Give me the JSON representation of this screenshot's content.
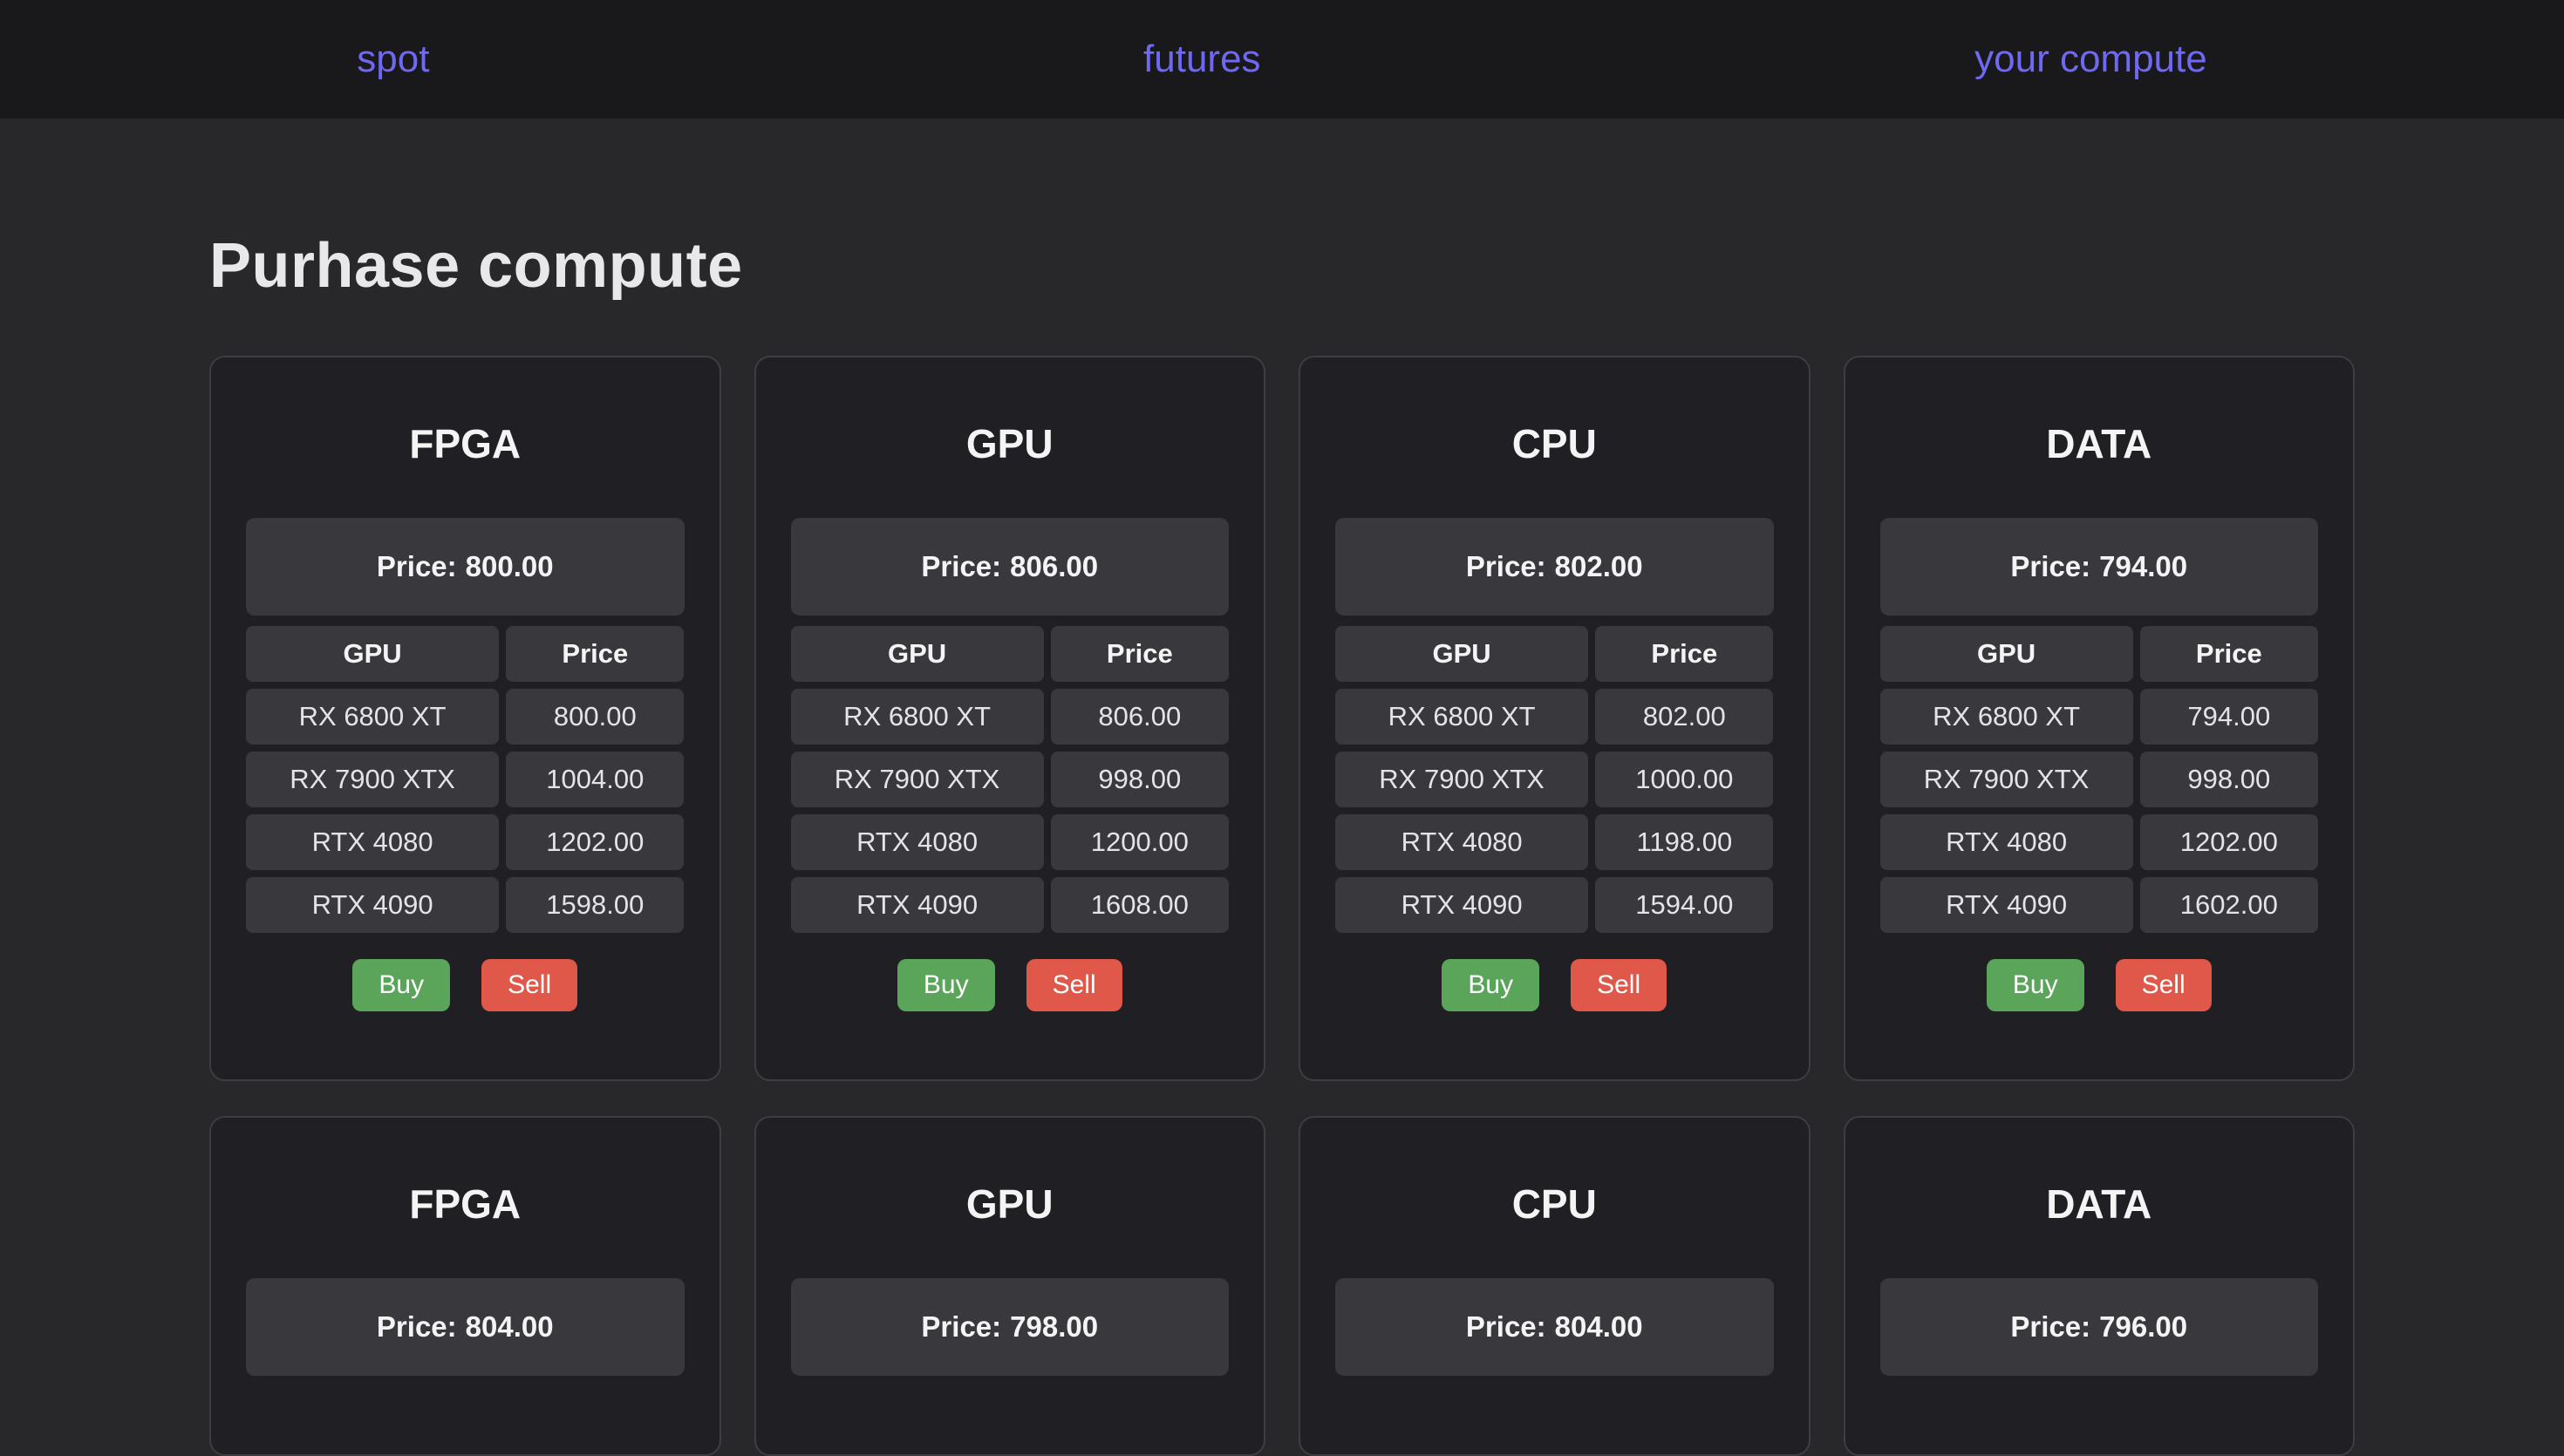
{
  "nav": {
    "items": [
      {
        "label": "spot"
      },
      {
        "label": "futures"
      },
      {
        "label": "your compute"
      }
    ]
  },
  "page": {
    "title": "Purhase compute"
  },
  "strings": {
    "price_prefix": "Price:",
    "buy": "Buy",
    "sell": "Sell"
  },
  "table": {
    "headers": [
      "GPU",
      "Price"
    ]
  },
  "rows": [
    {
      "cards": [
        {
          "title": "FPGA",
          "price": "800.00",
          "table": [
            [
              "RX 6800 XT",
              "800.00"
            ],
            [
              "RX 7900 XTX",
              "1004.00"
            ],
            [
              "RTX 4080",
              "1202.00"
            ],
            [
              "RTX 4090",
              "1598.00"
            ]
          ]
        },
        {
          "title": "GPU",
          "price": "806.00",
          "table": [
            [
              "RX 6800 XT",
              "806.00"
            ],
            [
              "RX 7900 XTX",
              "998.00"
            ],
            [
              "RTX 4080",
              "1200.00"
            ],
            [
              "RTX 4090",
              "1608.00"
            ]
          ]
        },
        {
          "title": "CPU",
          "price": "802.00",
          "table": [
            [
              "RX 6800 XT",
              "802.00"
            ],
            [
              "RX 7900 XTX",
              "1000.00"
            ],
            [
              "RTX 4080",
              "1198.00"
            ],
            [
              "RTX 4090",
              "1594.00"
            ]
          ]
        },
        {
          "title": "DATA",
          "price": "794.00",
          "table": [
            [
              "RX 6800 XT",
              "794.00"
            ],
            [
              "RX 7900 XTX",
              "998.00"
            ],
            [
              "RTX 4080",
              "1202.00"
            ],
            [
              "RTX 4090",
              "1602.00"
            ]
          ]
        }
      ]
    },
    {
      "cards": [
        {
          "title": "FPGA",
          "price": "804.00"
        },
        {
          "title": "GPU",
          "price": "798.00"
        },
        {
          "title": "CPU",
          "price": "804.00"
        },
        {
          "title": "DATA",
          "price": "796.00"
        }
      ]
    }
  ],
  "colors": {
    "page_bg": "#28282b",
    "nav_bg": "#19191c",
    "card_bg": "#202024",
    "card_border": "#3d3d42",
    "cell_bg": "#39393d",
    "accent": "#6e68f2",
    "buy": "#5ba55b",
    "sell": "#df584a"
  }
}
